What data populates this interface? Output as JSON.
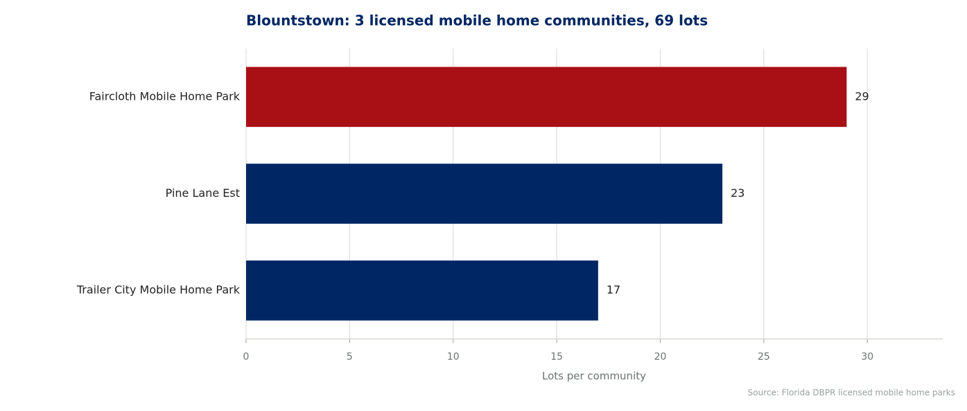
{
  "chart_data": {
    "type": "barh",
    "title": "Blountstown: 3 licensed mobile home communities, 69 lots",
    "categories": [
      "Faircloth Mobile Home Park",
      "Pine Lane Est",
      "Trailer City Mobile Home Park"
    ],
    "values": [
      29,
      23,
      17
    ],
    "colors": [
      "#a81015",
      "#002664",
      "#002664"
    ],
    "xlabel": "Lots per community",
    "source": "Source: Florida DBPR licensed mobile home parks",
    "xlim": [
      0,
      33.64
    ],
    "xticks": [
      0,
      5,
      10,
      15,
      20,
      25,
      30
    ],
    "grid": true
  }
}
